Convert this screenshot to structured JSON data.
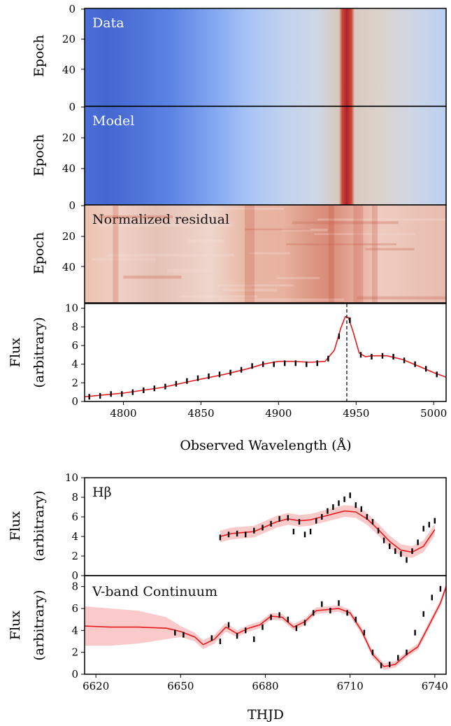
{
  "figure": {
    "heatmaps": [
      {
        "label": "Data",
        "ylabel": "Epoch",
        "yticks": [
          "0",
          "20",
          "40"
        ],
        "style": "flux"
      },
      {
        "label": "Model",
        "ylabel": "Epoch",
        "yticks": [
          "0",
          "20",
          "40"
        ],
        "style": "flux"
      },
      {
        "label": "Normalized residual",
        "ylabel": "Epoch",
        "yticks": [
          "0",
          "20",
          "40"
        ],
        "style": "residual"
      }
    ],
    "epoch_range": [
      0,
      60
    ]
  },
  "chart_data": [
    {
      "type": "heatmap",
      "title": "Data",
      "ylabel": "Epoch",
      "xlim": [
        4775,
        5008
      ],
      "ylim": [
        0,
        60
      ],
      "colormap": "coolwarm",
      "line_center_wavelength": 4944
    },
    {
      "type": "heatmap",
      "title": "Model",
      "ylabel": "Epoch",
      "xlim": [
        4775,
        5008
      ],
      "ylim": [
        0,
        60
      ],
      "colormap": "coolwarm",
      "line_center_wavelength": 4944
    },
    {
      "type": "heatmap",
      "title": "Normalized residual",
      "ylabel": "Epoch",
      "xlim": [
        4775,
        5008
      ],
      "ylim": [
        0,
        60
      ],
      "colormap": "coolwarm"
    },
    {
      "type": "line",
      "xlabel": "Observed Wavelength (Å)",
      "ylabel": [
        "Flux",
        "(arbitrary)"
      ],
      "xlim": [
        4775,
        5008
      ],
      "ylim": [
        0,
        10.5
      ],
      "xticks": [
        4800,
        4850,
        4900,
        4950,
        5000
      ],
      "yticks": [
        0,
        2,
        4,
        6,
        8,
        10
      ],
      "vline_x": 4944,
      "series": [
        {
          "kind": "model",
          "color": "#e41a1c",
          "x": [
            4775,
            4800,
            4825,
            4850,
            4865,
            4880,
            4890,
            4900,
            4910,
            4920,
            4930,
            4936,
            4940,
            4943,
            4945,
            4948,
            4952,
            4956,
            4960,
            4970,
            4980,
            4990,
            5000,
            5008
          ],
          "y": [
            0.5,
            0.9,
            1.5,
            2.4,
            2.9,
            3.5,
            4.0,
            4.3,
            4.3,
            4.2,
            4.3,
            5.5,
            7.8,
            9.1,
            9.0,
            7.5,
            5.2,
            4.8,
            4.9,
            4.9,
            4.5,
            3.8,
            3.1,
            2.6
          ]
        },
        {
          "kind": "data",
          "color": "#000000",
          "x": [
            4778,
            4785,
            4792,
            4799,
            4806,
            4813,
            4820,
            4827,
            4834,
            4841,
            4848,
            4855,
            4862,
            4869,
            4876,
            4883,
            4890,
            4897,
            4904,
            4911,
            4918,
            4925,
            4932,
            4939,
            4946,
            4953,
            4960,
            4967,
            4974,
            4981,
            4988,
            4995,
            5002
          ],
          "y": [
            0.5,
            0.6,
            0.8,
            0.8,
            1.0,
            1.2,
            1.4,
            1.6,
            1.9,
            2.2,
            2.5,
            2.7,
            2.9,
            3.1,
            3.4,
            3.8,
            4.0,
            4.0,
            4.1,
            4.1,
            4.0,
            4.1,
            4.6,
            7.0,
            8.7,
            5.0,
            4.8,
            4.9,
            4.8,
            4.4,
            4.0,
            3.5,
            2.9
          ]
        }
      ]
    },
    {
      "type": "line",
      "ylabel": [
        "Flux",
        "(arbitrary)"
      ],
      "xlim": [
        6616,
        6744
      ],
      "ylim": [
        0,
        10
      ],
      "yticks": [
        0,
        2,
        4,
        6,
        8,
        10
      ],
      "annotation": "Hβ",
      "series": [
        {
          "kind": "model",
          "color": "#e41a1c",
          "band_color": "#f8b8b8",
          "band_halfwidth": 0.6,
          "x": [
            6664,
            6668,
            6672,
            6676,
            6680,
            6684,
            6688,
            6692,
            6696,
            6700,
            6704,
            6708,
            6712,
            6716,
            6720,
            6724,
            6728,
            6732,
            6736,
            6740
          ],
          "y": [
            4.0,
            4.3,
            4.4,
            4.5,
            5.0,
            5.5,
            5.8,
            5.6,
            5.7,
            6.0,
            6.3,
            6.6,
            6.5,
            5.8,
            4.7,
            3.5,
            2.6,
            2.4,
            3.0,
            4.7
          ]
        },
        {
          "kind": "data",
          "color": "#000000",
          "x": [
            6664,
            6667,
            6670,
            6673,
            6676,
            6679,
            6682,
            6685,
            6688,
            6690,
            6692,
            6694,
            6696,
            6698,
            6700,
            6702,
            6704,
            6706,
            6708,
            6710,
            6712,
            6714,
            6716,
            6718,
            6720,
            6722,
            6724,
            6726,
            6728,
            6730,
            6732,
            6734,
            6736,
            6738,
            6740
          ],
          "y": [
            3.9,
            4.2,
            4.3,
            4.2,
            4.6,
            4.9,
            5.3,
            5.8,
            5.9,
            4.5,
            5.5,
            4.2,
            4.5,
            5.6,
            6.0,
            6.6,
            7.0,
            7.4,
            7.8,
            8.2,
            7.2,
            6.8,
            6.0,
            5.5,
            4.6,
            3.6,
            3.0,
            2.5,
            2.2,
            1.6,
            2.5,
            3.4,
            4.8,
            5.2,
            5.6
          ]
        }
      ]
    },
    {
      "type": "line",
      "xlabel": "THJD",
      "ylabel": [
        "Flux",
        "(arbitrary)"
      ],
      "xlim": [
        6616,
        6744
      ],
      "ylim": [
        0,
        9
      ],
      "xticks": [
        6620,
        6650,
        6680,
        6710,
        6740
      ],
      "yticks": [
        0,
        2,
        4,
        6,
        8
      ],
      "annotation": "V-band Continuum",
      "series": [
        {
          "kind": "model",
          "color": "#e41a1c",
          "band_color": "#f8b8b8",
          "x": [
            6616,
            6625,
            6635,
            6645,
            6650,
            6655,
            6658,
            6662,
            6666,
            6670,
            6674,
            6678,
            6682,
            6686,
            6690,
            6694,
            6698,
            6702,
            6706,
            6710,
            6714,
            6718,
            6722,
            6726,
            6730,
            6734,
            6738,
            6742,
            6744
          ],
          "y": [
            4.4,
            4.3,
            4.3,
            4.2,
            3.9,
            3.4,
            2.7,
            3.2,
            4.3,
            3.7,
            4.2,
            4.5,
            5.3,
            5.2,
            4.3,
            4.8,
            5.8,
            5.9,
            6.0,
            5.6,
            4.0,
            1.8,
            0.7,
            0.9,
            1.8,
            2.5,
            4.5,
            6.5,
            8.0
          ],
          "band_halfwidth": [
            1.8,
            1.7,
            1.5,
            1.0,
            0.5,
            0.4,
            0.4,
            0.4,
            0.4,
            0.3,
            0.3,
            0.3,
            0.3,
            0.3,
            0.3,
            0.3,
            0.3,
            0.3,
            0.3,
            0.3,
            0.3,
            0.3,
            0.3,
            0.3,
            0.3,
            0.3,
            0.3,
            0.3,
            0.3
          ]
        },
        {
          "kind": "data",
          "color": "#000000",
          "x": [
            6648,
            6651,
            6661,
            6664,
            6667,
            6670,
            6673,
            6676,
            6679,
            6682,
            6685,
            6688,
            6691,
            6694,
            6697,
            6700,
            6703,
            6706,
            6709,
            6712,
            6715,
            6718,
            6721,
            6724,
            6727,
            6730,
            6733,
            6736,
            6739,
            6742
          ],
          "y": [
            3.8,
            3.6,
            3.3,
            3.0,
            4.5,
            3.5,
            4.0,
            3.2,
            4.3,
            5.2,
            5.4,
            5.0,
            4.2,
            4.7,
            5.6,
            6.4,
            5.8,
            6.5,
            5.6,
            5.0,
            3.8,
            2.0,
            0.8,
            0.9,
            1.5,
            2.0,
            3.8,
            5.5,
            7.0,
            7.8
          ]
        }
      ]
    }
  ]
}
